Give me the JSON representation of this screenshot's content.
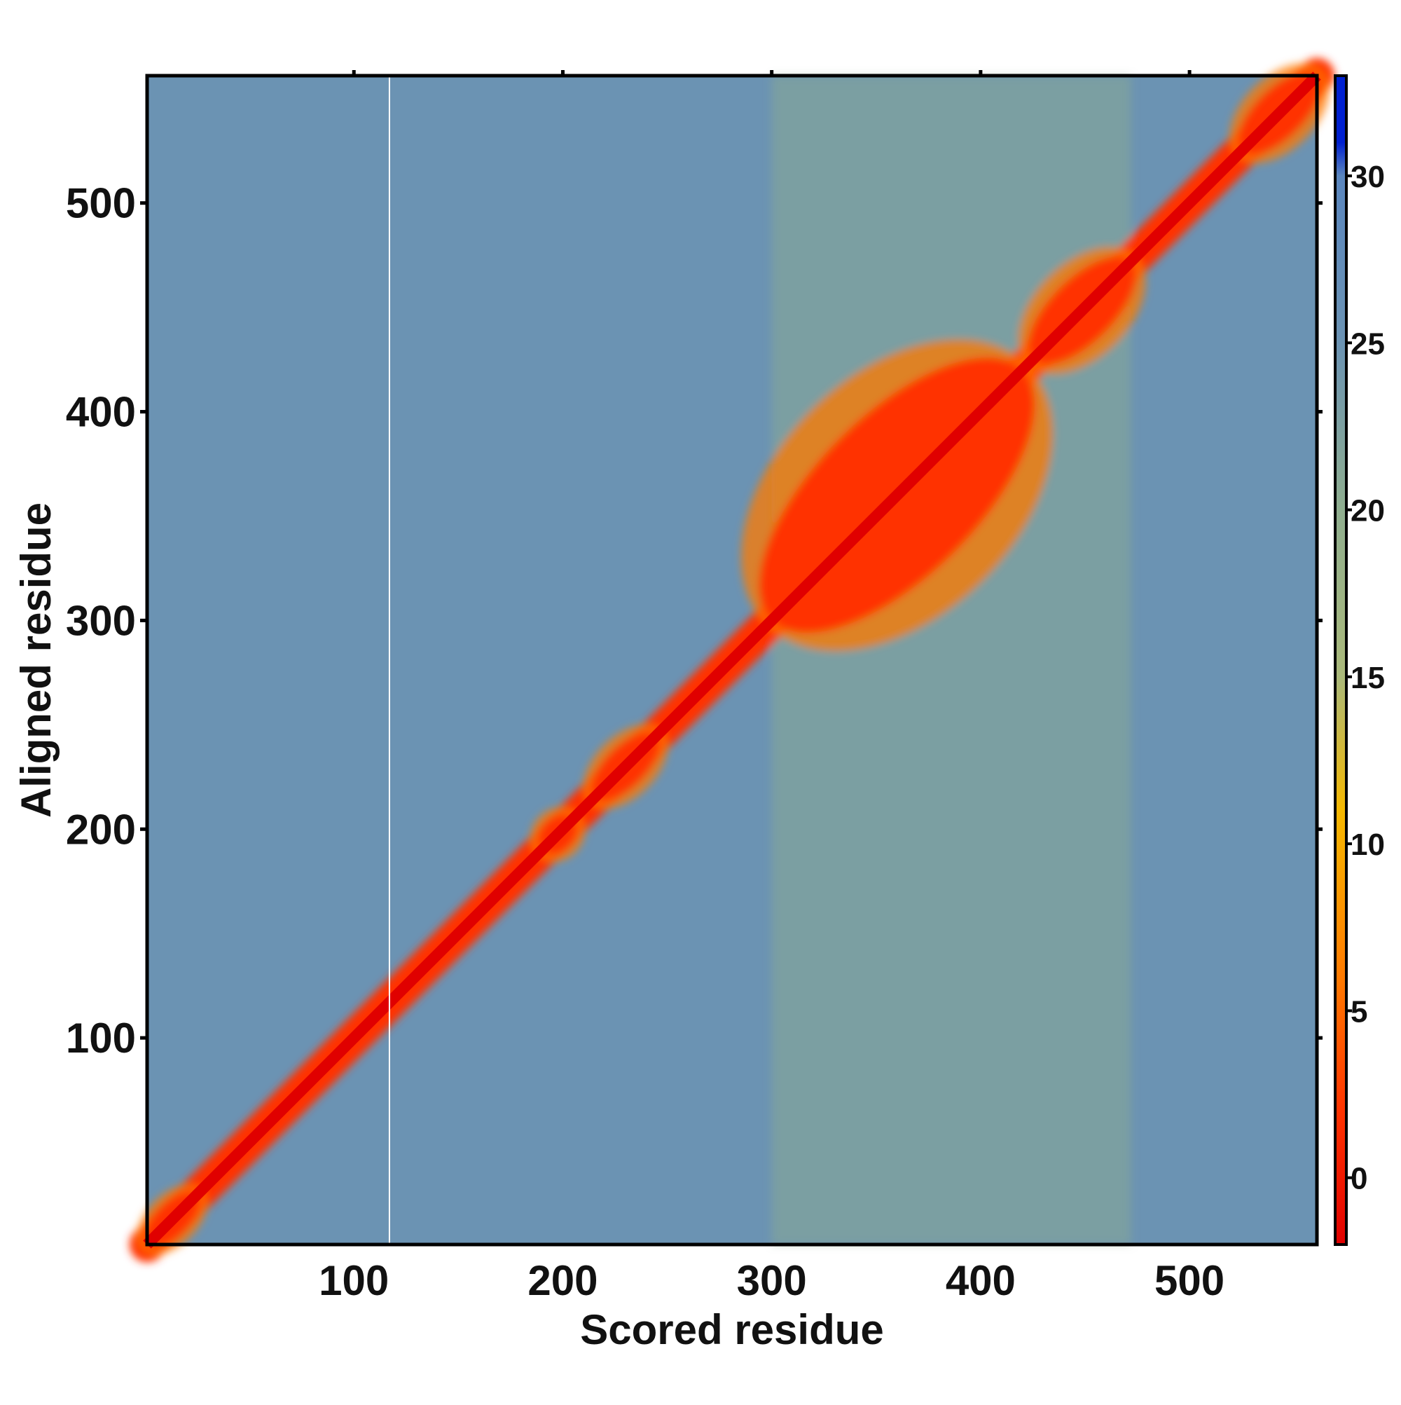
{
  "chart_data": {
    "type": "heatmap",
    "title": "",
    "xlabel": "Scored residue",
    "ylabel": "Aligned residue",
    "xlim": [
      1,
      561
    ],
    "ylim": [
      1,
      561
    ],
    "x_ticks": [
      "100",
      "200",
      "300",
      "400",
      "500"
    ],
    "y_ticks": [
      "100",
      "200",
      "300",
      "400",
      "500"
    ],
    "colorbar": {
      "range": [
        -2,
        33
      ],
      "ticks": [
        "0",
        "5",
        "10",
        "15",
        "20",
        "25",
        "30"
      ],
      "colors": [
        {
          "value": -2,
          "color": "#e00000"
        },
        {
          "value": 2,
          "color": "#ff3300"
        },
        {
          "value": 6,
          "color": "#ff7a00"
        },
        {
          "value": 11,
          "color": "#f5b800"
        },
        {
          "value": 15,
          "color": "#aab97a"
        },
        {
          "value": 20,
          "color": "#8fae8f"
        },
        {
          "value": 25,
          "color": "#6b93b3"
        },
        {
          "value": 30,
          "color": "#5a86be"
        },
        {
          "value": 31,
          "color": "#0020d0"
        },
        {
          "value": 33,
          "color": "#0020d0"
        }
      ]
    },
    "matrix_description": {
      "background_value": 28,
      "diagonal_value": 0,
      "high_confidence_blocks": [
        {
          "from": 1,
          "to": 25,
          "value": 3
        },
        {
          "from": 190,
          "to": 205,
          "value": 6
        },
        {
          "from": 215,
          "to": 245,
          "value": 4
        },
        {
          "from": 300,
          "to": 420,
          "value": 5
        },
        {
          "from": 425,
          "to": 472,
          "value": 4
        },
        {
          "from": 525,
          "to": 561,
          "value": 5
        }
      ],
      "moderate_regions": [
        {
          "x": [
            300,
            472
          ],
          "y": [
            300,
            561
          ],
          "value": 22
        },
        {
          "x": [
            300,
            472
          ],
          "y": [
            1,
            300
          ],
          "value": 24
        }
      ]
    }
  }
}
